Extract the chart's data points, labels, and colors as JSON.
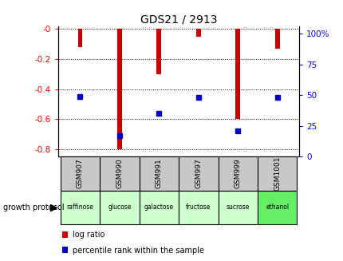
{
  "title": "GDS21 / 2913",
  "samples": [
    "GSM907",
    "GSM990",
    "GSM991",
    "GSM997",
    "GSM999",
    "GSM1001"
  ],
  "protocols": [
    "raffinose",
    "glucose",
    "galactose",
    "fructose",
    "sucrose",
    "ethanol"
  ],
  "log_ratios": [
    -0.12,
    -0.8,
    -0.3,
    -0.05,
    -0.6,
    -0.13
  ],
  "percentile_ranks": [
    44,
    11,
    30,
    43,
    15,
    43
  ],
  "bar_color": "#cc0000",
  "dot_color": "#0000cc",
  "left_yticks": [
    0,
    -0.2,
    -0.4,
    -0.6,
    -0.8
  ],
  "left_ylabels": [
    "-0",
    "-0.2",
    "-0.4",
    "-0.6",
    "-0.8"
  ],
  "right_yticks": [
    0,
    25,
    50,
    75,
    100
  ],
  "right_ylabels": [
    "0",
    "25",
    "50",
    "75",
    "100%"
  ],
  "ylim_left": [
    -0.85,
    0.02
  ],
  "ylim_right": [
    0,
    106
  ],
  "legend_log_ratio": "log ratio",
  "legend_percentile": "percentile rank within the sample",
  "growth_protocol_label": "growth protocol",
  "bar_width": 0.12,
  "sample_bg": "#c8c8c8",
  "proto_colors": [
    "#ccffcc",
    "#ccffcc",
    "#ccffcc",
    "#ccffcc",
    "#ccffcc",
    "#66ee66"
  ]
}
